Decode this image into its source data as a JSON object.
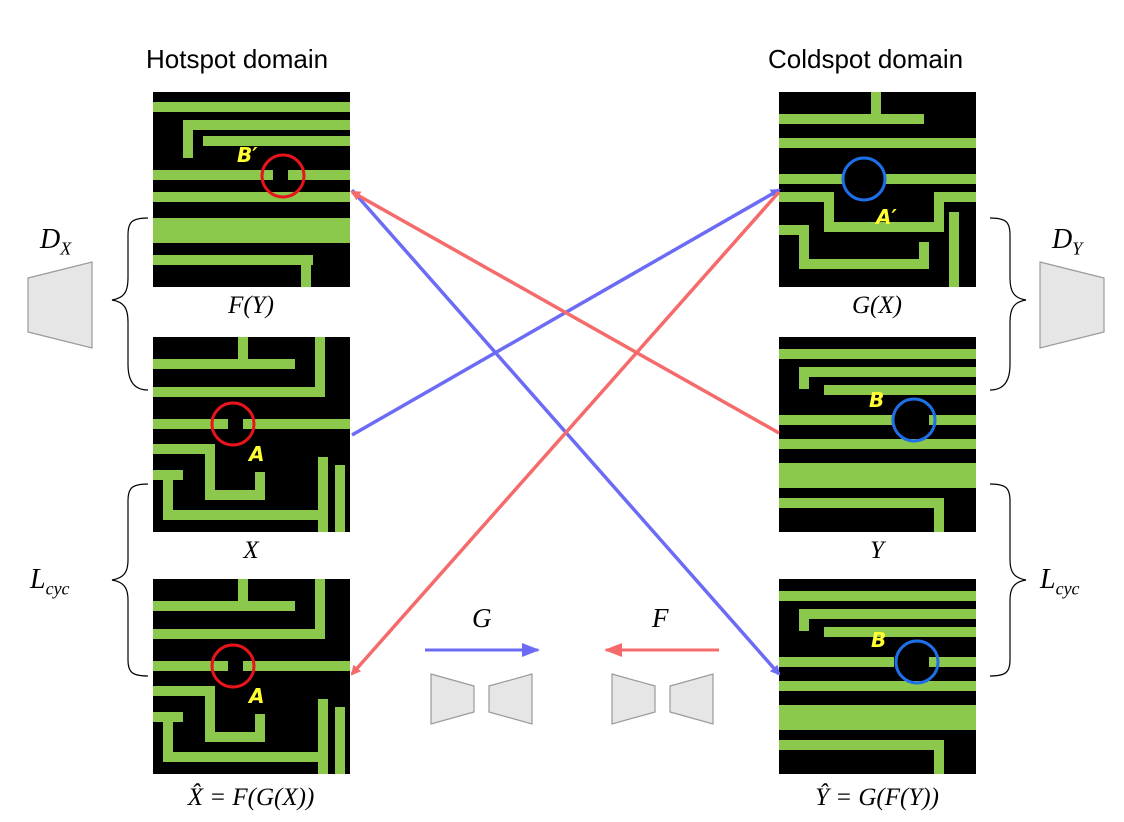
{
  "headings": {
    "hotspot": "Hotspot domain",
    "coldspot": "Coldspot domain"
  },
  "captions": {
    "f_y": "F(Y)",
    "x": "X",
    "x_hat": "X̂ = F(G(X))",
    "g_x": "G(X)",
    "y": "Y",
    "y_hat": "Ŷ = G(F(Y))"
  },
  "side_labels": {
    "d_x": "D",
    "d_x_sub": "X",
    "d_y": "D",
    "d_y_sub": "Y",
    "l_cyc_left": "L",
    "l_cyc_left_sub": "cyc",
    "l_cyc_right": "L",
    "l_cyc_right_sub": "cyc"
  },
  "point_labels": {
    "b_prime": "B′",
    "a": "A",
    "a_hat": "A",
    "a_prime": "A′",
    "b": "B",
    "b_hat": "B"
  },
  "arrow_labels": {
    "g": "G",
    "f": "F"
  },
  "colors": {
    "wire": "#8cc84b",
    "tile_bg": "#000000",
    "hotspot_circle": "#e8141c",
    "coldspot_circle": "#1f6fe8",
    "g_arrow": "#6b6bf5",
    "f_arrow": "#f56b6b",
    "trapezoid_fill": "#e6e6e6",
    "trapezoid_stroke": "#9a9a9a"
  }
}
